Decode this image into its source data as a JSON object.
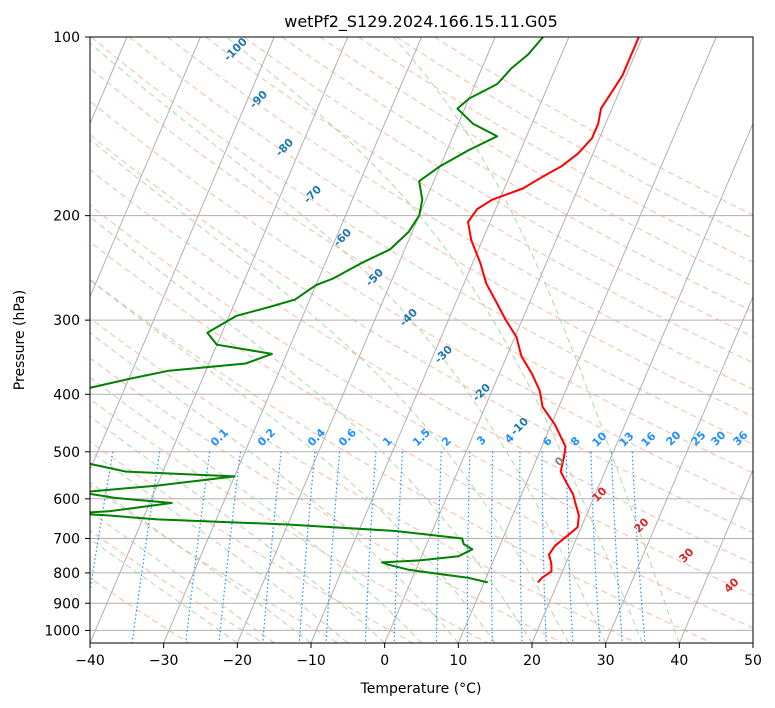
{
  "chart_data": {
    "type": "line",
    "title": "wetPf2_S129.2024.166.15.11.G05",
    "xlabel": "Temperature (°C)",
    "ylabel": "Pressure (hPa)",
    "xlim": [
      -40,
      50
    ],
    "ylim": [
      1050,
      100
    ],
    "y_scale": "log",
    "x_ticks": [
      -40,
      -30,
      -20,
      -10,
      0,
      10,
      20,
      30,
      40,
      50
    ],
    "x_tick_labels": [
      "−40",
      "−30",
      "−20",
      "−10",
      "0",
      "10",
      "20",
      "30",
      "40",
      "50"
    ],
    "y_ticks": [
      100,
      200,
      300,
      400,
      500,
      600,
      700,
      800,
      900,
      1000
    ],
    "y_tick_labels": [
      "100",
      "200",
      "300",
      "400",
      "500",
      "600",
      "700",
      "800",
      "900",
      "1000"
    ],
    "grid": true,
    "colors": {
      "temperature": "#ff0000",
      "dewpoint": "#008000",
      "isotherm": "#b0b0b0",
      "dry_adiabat": "#f4a582",
      "moist_adiabat": "#a6d4a6",
      "mixing_ratio": "#1e90ff",
      "label_blue": "#1f77b4",
      "label_red": "#d62728"
    },
    "series": [
      {
        "name": "",
        "color": "#ff0000",
        "points": [
          [
            17.3,
            830
          ],
          [
            17.6,
            815
          ],
          [
            18.5,
            795
          ],
          [
            18.0,
            770
          ],
          [
            17.2,
            745
          ],
          [
            17.5,
            720
          ],
          [
            18.5,
            695
          ],
          [
            19.5,
            670
          ],
          [
            19.0,
            640
          ],
          [
            18.0,
            615
          ],
          [
            17.0,
            590
          ],
          [
            15.5,
            565
          ],
          [
            14.0,
            540
          ],
          [
            13.6,
            510
          ],
          [
            13.2,
            490
          ],
          [
            10.5,
            450
          ],
          [
            7.8,
            420
          ],
          [
            6.5,
            395
          ],
          [
            4.5,
            370
          ],
          [
            2.0,
            345
          ],
          [
            0.2,
            320
          ],
          [
            -2.2,
            300
          ],
          [
            -4.5,
            280
          ],
          [
            -7.0,
            260
          ],
          [
            -9.0,
            240
          ],
          [
            -11.5,
            220
          ],
          [
            -13.0,
            205
          ],
          [
            -12.5,
            195
          ],
          [
            -11.0,
            188
          ],
          [
            -7.5,
            180
          ],
          [
            -5.5,
            172
          ],
          [
            -3.5,
            165
          ],
          [
            -2.0,
            157
          ],
          [
            -1.0,
            148
          ],
          [
            -1.0,
            140
          ],
          [
            -1.5,
            132
          ],
          [
            -1.0,
            124
          ],
          [
            -0.5,
            116
          ],
          [
            -0.5,
            108
          ],
          [
            -0.5,
            100
          ]
        ]
      },
      {
        "name": "",
        "color": "#008000",
        "points": [
          [
            10.5,
            830
          ],
          [
            7.5,
            815
          ],
          [
            4.0,
            805
          ],
          [
            -1.0,
            790
          ],
          [
            -4.0,
            775
          ],
          [
            -5.0,
            768
          ],
          [
            0.0,
            762
          ],
          [
            5.0,
            750
          ],
          [
            6.5,
            730
          ],
          [
            5.0,
            715
          ],
          [
            4.5,
            700
          ],
          [
            -5.0,
            680
          ],
          [
            -20.0,
            663
          ],
          [
            -38.0,
            650
          ],
          [
            -45.0,
            640
          ],
          [
            -50.0,
            635
          ],
          [
            -45.0,
            630
          ],
          [
            -37.0,
            610
          ],
          [
            -45.0,
            598
          ],
          [
            -50.0,
            585
          ],
          [
            -40.0,
            570
          ],
          [
            -30.0,
            550
          ],
          [
            -45.0,
            540
          ],
          [
            -50.0,
            525
          ],
          [
            -60.0,
            480
          ],
          [
            -65.0,
            420
          ],
          [
            -50.0,
            377
          ],
          [
            -45.0,
            365
          ],
          [
            -35.0,
            355
          ],
          [
            -32.0,
            342
          ],
          [
            -40.0,
            330
          ],
          [
            -42.0,
            315
          ],
          [
            -39.0,
            295
          ],
          [
            -35.0,
            285
          ],
          [
            -32.0,
            277
          ],
          [
            -30.0,
            262
          ],
          [
            -28.0,
            255
          ],
          [
            -25.0,
            240
          ],
          [
            -22.0,
            228
          ],
          [
            -20.5,
            213
          ],
          [
            -20.0,
            200
          ],
          [
            -20.5,
            188
          ],
          [
            -22.0,
            175
          ],
          [
            -20.0,
            165
          ],
          [
            -17.0,
            155
          ],
          [
            -14.0,
            147
          ],
          [
            -18.0,
            140
          ],
          [
            -21.0,
            132
          ],
          [
            -20.0,
            127
          ],
          [
            -17.0,
            120
          ],
          [
            -16.0,
            113
          ],
          [
            -14.5,
            107
          ],
          [
            -13.5,
            100
          ]
        ]
      }
    ],
    "dry_adiabat_labels": [
      "-100",
      "-90",
      "-80",
      "-70",
      "-60",
      "-50",
      "-40",
      "-30",
      "-20",
      "-10",
      "0",
      "10",
      "20",
      "30",
      "40"
    ],
    "mixing_ratio_labels": [
      "0.1",
      "0.2",
      "0.4",
      "0.6",
      "1",
      "1.5",
      "2",
      "3",
      "4",
      "6",
      "8",
      "10",
      "13",
      "16",
      "20",
      "25",
      "30",
      "36"
    ]
  }
}
